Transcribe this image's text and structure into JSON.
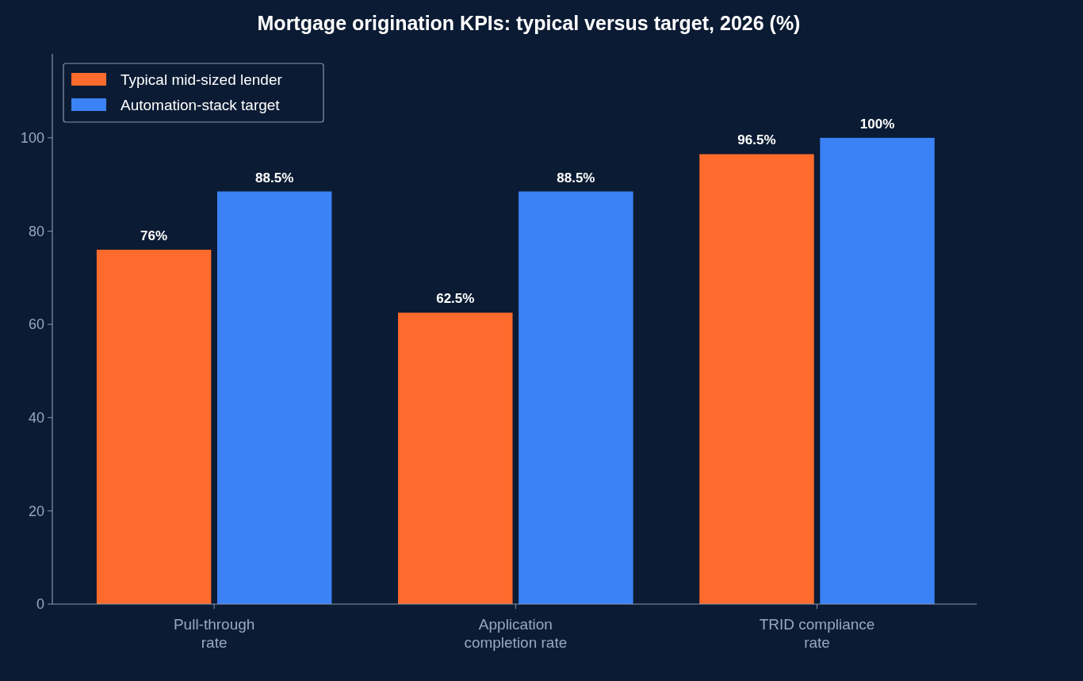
{
  "chart_data": {
    "type": "bar",
    "title": "Mortgage origination KPIs: typical versus target, 2026 (%)",
    "categories": [
      "Pull-through\nrate",
      "Application\ncompletion rate",
      "TRID compliance\nrate"
    ],
    "series": [
      {
        "name": "Typical mid-sized lender",
        "color": "#ff6b2c",
        "values": [
          76,
          62.5,
          96.5
        ],
        "value_labels": [
          "76%",
          "62.5%",
          "96.5%"
        ]
      },
      {
        "name": "Automation-stack target",
        "color": "#3b82f6",
        "values": [
          88.5,
          88.5,
          100
        ],
        "value_labels": [
          "88.5%",
          "88.5%",
          "100%"
        ]
      }
    ],
    "ylim": [
      0,
      118
    ],
    "yticks": [
      0,
      20,
      40,
      60,
      80,
      100
    ],
    "grid": false,
    "legend": "top left"
  }
}
